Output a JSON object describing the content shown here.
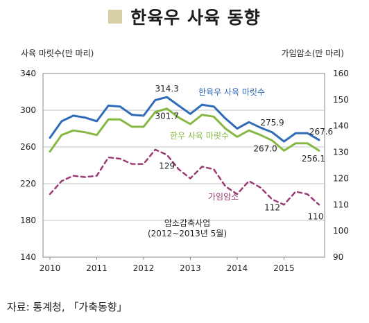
{
  "header": {
    "title": "한육우 사육 동향"
  },
  "footer": {
    "source": "자료: 통계청, 「가축동향」"
  },
  "chart_data": {
    "type": "line",
    "left_axis_label": "사육 마릿수(만 마리)",
    "right_axis_label": "가임암소(만 마리)",
    "ylim_left": [
      140,
      340
    ],
    "yticks_left": [
      140,
      180,
      220,
      260,
      300,
      340
    ],
    "ylim_right": [
      90,
      160
    ],
    "yticks_right": [
      90,
      100,
      110,
      120,
      130,
      140,
      150,
      160
    ],
    "x_tick_labels": [
      "2010",
      "2011",
      "2012",
      "2013",
      "2014",
      "2015"
    ],
    "annotation": {
      "line1": "암소감축사업",
      "line2": "(2012~2013년 5월)"
    },
    "series": [
      {
        "name": "한육우 사육 마릿수",
        "axis": "left",
        "color": "#2f6bb8",
        "style": "solid",
        "values": [
          270,
          288,
          294,
          292,
          288,
          305,
          304,
          295,
          294,
          311,
          314.3,
          305,
          296,
          306,
          304,
          291,
          280,
          287,
          281,
          275.9,
          266,
          275,
          275,
          267.6
        ]
      },
      {
        "name": "한우 사육 마릿수",
        "axis": "left",
        "color": "#86b844",
        "style": "solid",
        "values": [
          255,
          273,
          278,
          276,
          273,
          290,
          290,
          282,
          282,
          298,
          301.7,
          292,
          285,
          295,
          293,
          280,
          271,
          278,
          273,
          267.0,
          256,
          264,
          264,
          256.1
        ]
      },
      {
        "name": "가임암소",
        "axis": "right",
        "color": "#9b3a73",
        "style": "dashed",
        "values": [
          114,
          119,
          121,
          120.5,
          121,
          128,
          127.5,
          125.5,
          125.5,
          131,
          129,
          123.5,
          120,
          124.5,
          123.5,
          117,
          114,
          119,
          116.5,
          112,
          110,
          115,
          114,
          110
        ]
      }
    ],
    "point_labels": [
      {
        "series": 0,
        "index": 10,
        "text": "314.3"
      },
      {
        "series": 0,
        "index": 19,
        "text": "275.9"
      },
      {
        "series": 0,
        "index": 23,
        "text": "267.6"
      },
      {
        "series": 1,
        "index": 10,
        "text": "301.7"
      },
      {
        "series": 1,
        "index": 19,
        "text": "267.0"
      },
      {
        "series": 1,
        "index": 23,
        "text": "256.1"
      },
      {
        "series": 2,
        "index": 10,
        "text": "129"
      },
      {
        "series": 2,
        "index": 19,
        "text": "112"
      },
      {
        "series": 2,
        "index": 23,
        "text": "110"
      }
    ]
  }
}
